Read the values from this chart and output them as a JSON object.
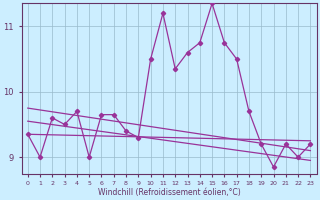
{
  "xlabel": "Windchill (Refroidissement éolien,°C)",
  "bg_color": "#cceeff",
  "line_color": "#993399",
  "grid_color": "#99bbcc",
  "axis_color": "#663366",
  "xlim": [
    -0.5,
    23.5
  ],
  "ylim": [
    8.75,
    11.35
  ],
  "yticks": [
    9,
    10,
    11
  ],
  "xticks": [
    0,
    1,
    2,
    3,
    4,
    5,
    6,
    7,
    8,
    9,
    10,
    11,
    12,
    13,
    14,
    15,
    16,
    17,
    18,
    19,
    20,
    21,
    22,
    23
  ],
  "main_data": [
    9.35,
    9.0,
    9.6,
    9.5,
    9.7,
    9.0,
    9.65,
    9.65,
    9.4,
    9.3,
    10.5,
    11.2,
    10.35,
    10.6,
    10.75,
    11.35,
    10.75,
    10.5,
    9.7,
    9.2,
    8.85,
    9.2,
    9.0,
    9.2
  ],
  "line1_start": 9.75,
  "line1_end": 9.1,
  "line2_start": 9.55,
  "line2_end": 8.95,
  "line3_start": 9.35,
  "line3_end": 9.25
}
